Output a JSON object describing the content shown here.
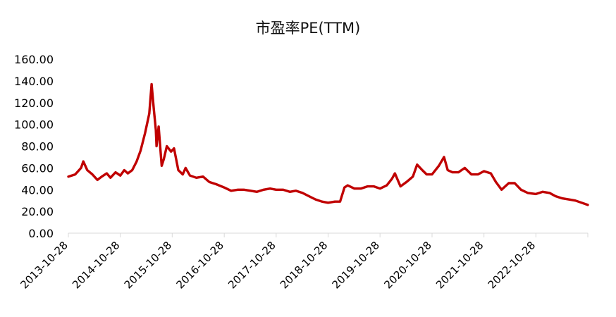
{
  "chart_data": {
    "type": "line",
    "title": "市盈率PE(TTM)",
    "xlabel": "",
    "ylabel": "",
    "ylim": [
      0,
      160
    ],
    "yticks": [
      "0.00",
      "20.00",
      "40.00",
      "60.00",
      "80.00",
      "100.00",
      "120.00",
      "140.00",
      "160.00"
    ],
    "xticks": [
      "2013-10-28",
      "2014-10-28",
      "2015-10-28",
      "2016-10-28",
      "2017-10-28",
      "2018-10-28",
      "2019-10-28",
      "2020-10-28",
      "2021-10-28",
      "2022-10-28"
    ],
    "xlim": [
      "2013-10-28",
      "2023-10-28"
    ],
    "grid": false,
    "line_color": "#C00000",
    "series": [
      {
        "x": [
          "2013-10-28",
          "2013-12-15",
          "2014-01-25",
          "2014-02-10",
          "2014-03-10",
          "2014-04-15",
          "2014-05-20",
          "2014-06-20",
          "2014-07-25",
          "2014-08-20",
          "2014-09-25",
          "2014-10-28",
          "2014-11-25",
          "2014-12-20",
          "2015-01-20",
          "2015-02-20",
          "2015-03-20",
          "2015-04-20",
          "2015-05-20",
          "2015-06-05",
          "2015-06-20",
          "2015-07-05",
          "2015-07-10",
          "2015-07-25",
          "2015-08-15",
          "2015-08-30",
          "2015-09-20",
          "2015-10-20",
          "2015-11-10",
          "2015-12-10",
          "2016-01-10",
          "2016-01-30",
          "2016-03-01",
          "2016-04-15",
          "2016-06-01",
          "2016-07-15",
          "2016-09-01",
          "2016-10-28",
          "2016-12-15",
          "2017-02-01",
          "2017-03-15",
          "2017-05-01",
          "2017-06-15",
          "2017-08-01",
          "2017-09-15",
          "2017-10-28",
          "2017-12-15",
          "2018-02-01",
          "2018-03-15",
          "2018-05-01",
          "2018-06-15",
          "2018-08-01",
          "2018-09-15",
          "2018-10-28",
          "2018-12-15",
          "2019-01-20",
          "2019-02-20",
          "2019-03-15",
          "2019-05-01",
          "2019-06-15",
          "2019-08-01",
          "2019-09-15",
          "2019-10-28",
          "2019-12-15",
          "2020-01-20",
          "2020-02-10",
          "2020-03-20",
          "2020-05-01",
          "2020-06-15",
          "2020-07-15",
          "2020-08-20",
          "2020-09-20",
          "2020-10-28",
          "2020-12-15",
          "2021-01-20",
          "2021-02-15",
          "2021-03-20",
          "2021-05-01",
          "2021-06-15",
          "2021-08-01",
          "2021-09-15",
          "2021-10-28",
          "2021-12-15",
          "2022-01-20",
          "2022-03-01",
          "2022-04-20",
          "2022-06-01",
          "2022-07-15",
          "2022-09-01",
          "2022-10-28",
          "2022-12-15",
          "2023-02-01",
          "2023-03-15",
          "2023-05-01",
          "2023-06-15",
          "2023-08-01",
          "2023-09-15",
          "2023-10-28"
        ],
        "values": [
          52,
          54,
          60,
          66,
          58,
          54,
          49,
          52,
          55,
          51,
          56,
          53,
          58,
          55,
          58,
          66,
          76,
          92,
          110,
          137,
          115,
          95,
          80,
          98,
          62,
          68,
          80,
          75,
          78,
          58,
          54,
          60,
          53,
          51,
          52,
          47,
          45,
          42,
          39,
          40,
          40,
          39,
          38,
          40,
          41,
          40,
          40,
          38,
          39,
          37,
          34,
          31,
          29,
          28,
          29,
          29,
          42,
          44,
          41,
          41,
          43,
          43,
          41,
          44,
          50,
          55,
          43,
          47,
          52,
          63,
          58,
          54,
          54,
          62,
          70,
          58,
          56,
          56,
          60,
          54,
          54,
          57,
          55,
          47,
          40,
          46,
          46,
          40,
          37,
          36,
          38,
          37,
          34,
          32,
          31,
          30,
          28,
          26
        ]
      }
    ]
  }
}
